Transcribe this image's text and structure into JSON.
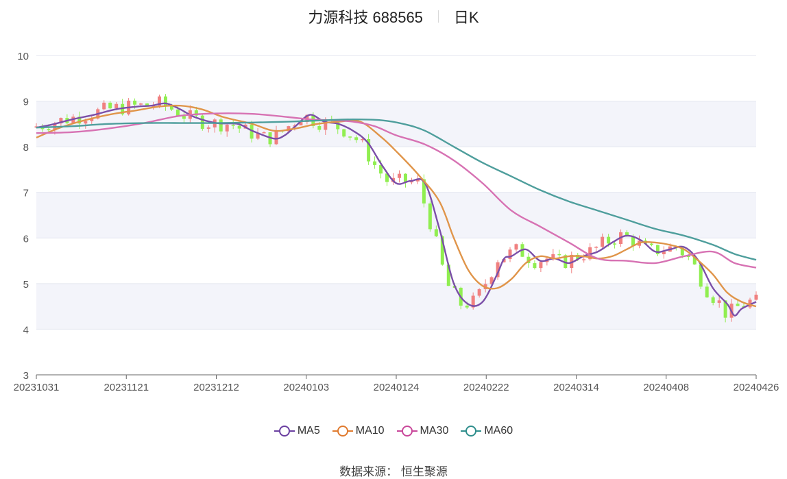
{
  "header": {
    "title": "力源科技 688565",
    "period": "日K"
  },
  "source": "数据来源： 恒生聚源",
  "chart_data": {
    "type": "candlestick",
    "ylim": [
      3,
      10
    ],
    "yticks": [
      "3",
      "4",
      "5",
      "6",
      "7",
      "8",
      "9",
      "10"
    ],
    "xticks": [
      "20231031",
      "20231121",
      "20231212",
      "20240103",
      "20240124",
      "20240222",
      "20240314",
      "20240408",
      "20240426"
    ],
    "grid": true,
    "legend_position": "bottom",
    "colors": {
      "up": "#f08080",
      "down": "#90ee50",
      "MA5": "#7b4fa8",
      "MA10": "#e0954a",
      "MA30": "#d772b3",
      "MA60": "#4e9e9c"
    },
    "series": [
      {
        "name": "MA5",
        "color": "#7b4fa8",
        "x": [
          0,
          0.02,
          0.05,
          0.08,
          0.11,
          0.14,
          0.16,
          0.18,
          0.2,
          0.22,
          0.25,
          0.28,
          0.3,
          0.33,
          0.345,
          0.36,
          0.38,
          0.4,
          0.42,
          0.44,
          0.46,
          0.48,
          0.5,
          0.52,
          0.54,
          0.56,
          0.58,
          0.6,
          0.62,
          0.64,
          0.65,
          0.66,
          0.68,
          0.7,
          0.72,
          0.74,
          0.76,
          0.78,
          0.8,
          0.82,
          0.84,
          0.86,
          0.88,
          0.9,
          0.92,
          0.94,
          0.96,
          0.97,
          0.98,
          1.0
        ],
        "y": [
          8.42,
          8.48,
          8.6,
          8.7,
          8.82,
          8.88,
          8.9,
          8.95,
          8.82,
          8.65,
          8.52,
          8.5,
          8.35,
          8.18,
          8.25,
          8.45,
          8.7,
          8.55,
          8.5,
          8.35,
          8.1,
          7.6,
          7.2,
          7.25,
          7.2,
          6.2,
          5.0,
          4.55,
          4.6,
          5.2,
          5.55,
          5.6,
          5.75,
          5.5,
          5.55,
          5.45,
          5.6,
          5.7,
          5.9,
          6.05,
          5.95,
          5.7,
          5.75,
          5.8,
          5.5,
          4.9,
          4.55,
          4.3,
          4.45,
          4.6
        ]
      },
      {
        "name": "MA10",
        "color": "#e0954a",
        "x": [
          0,
          0.03,
          0.06,
          0.1,
          0.14,
          0.17,
          0.2,
          0.23,
          0.26,
          0.3,
          0.33,
          0.36,
          0.39,
          0.42,
          0.45,
          0.48,
          0.5,
          0.53,
          0.56,
          0.58,
          0.6,
          0.62,
          0.64,
          0.66,
          0.68,
          0.7,
          0.72,
          0.74,
          0.76,
          0.78,
          0.8,
          0.82,
          0.84,
          0.86,
          0.88,
          0.9,
          0.92,
          0.94,
          0.96,
          0.98,
          1.0
        ],
        "y": [
          8.2,
          8.4,
          8.55,
          8.7,
          8.8,
          8.88,
          8.9,
          8.82,
          8.65,
          8.5,
          8.35,
          8.4,
          8.5,
          8.55,
          8.55,
          8.2,
          7.9,
          7.4,
          6.8,
          6.0,
          5.3,
          4.95,
          4.9,
          5.1,
          5.45,
          5.6,
          5.55,
          5.6,
          5.6,
          5.55,
          5.6,
          5.75,
          5.9,
          5.9,
          5.85,
          5.75,
          5.5,
          5.2,
          4.8,
          4.6,
          4.5
        ]
      },
      {
        "name": "MA30",
        "color": "#d772b3",
        "x": [
          0,
          0.05,
          0.1,
          0.15,
          0.2,
          0.25,
          0.3,
          0.35,
          0.38,
          0.41,
          0.44,
          0.47,
          0.5,
          0.54,
          0.58,
          0.62,
          0.66,
          0.7,
          0.74,
          0.78,
          0.82,
          0.86,
          0.9,
          0.94,
          0.97,
          1.0
        ],
        "y": [
          8.3,
          8.32,
          8.4,
          8.52,
          8.68,
          8.73,
          8.72,
          8.65,
          8.6,
          8.58,
          8.55,
          8.45,
          8.25,
          8.05,
          7.7,
          7.2,
          6.6,
          6.25,
          5.9,
          5.55,
          5.5,
          5.45,
          5.6,
          5.7,
          5.45,
          5.35
        ]
      },
      {
        "name": "MA60",
        "color": "#4e9e9c",
        "x": [
          0,
          0.05,
          0.1,
          0.15,
          0.2,
          0.25,
          0.3,
          0.35,
          0.4,
          0.44,
          0.48,
          0.51,
          0.54,
          0.58,
          0.62,
          0.66,
          0.7,
          0.74,
          0.78,
          0.82,
          0.86,
          0.9,
          0.94,
          0.97,
          1.0
        ],
        "y": [
          8.42,
          8.45,
          8.5,
          8.52,
          8.52,
          8.52,
          8.53,
          8.55,
          8.58,
          8.6,
          8.58,
          8.5,
          8.35,
          8.0,
          7.65,
          7.35,
          7.05,
          6.8,
          6.6,
          6.4,
          6.2,
          6.05,
          5.85,
          5.65,
          5.52
        ]
      }
    ]
  },
  "legend": [
    {
      "label": "MA5",
      "color": "#6a3fa0"
    },
    {
      "label": "MA10",
      "color": "#e07a2e"
    },
    {
      "label": "MA30",
      "color": "#c9479a"
    },
    {
      "label": "MA60",
      "color": "#2f8e8c"
    }
  ]
}
